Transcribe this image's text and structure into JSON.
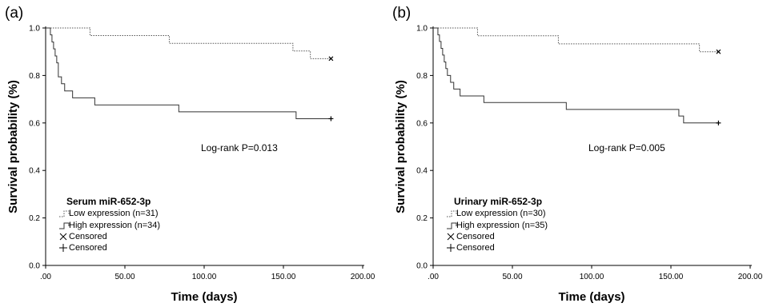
{
  "chart_data": [
    {
      "type": "line",
      "panel_label": "(a)",
      "xlabel": "Time (days)",
      "ylabel": "Survival probability (%)",
      "xlim": [
        0,
        200
      ],
      "ylim": [
        0,
        1.0
      ],
      "xticks": [
        ".00",
        "50.00",
        "100.00",
        "150.00",
        "200.00"
      ],
      "yticks": [
        "0.0",
        "0.2",
        "0.4",
        "0.6",
        "0.8",
        "1.0"
      ],
      "annotation": "Log-rank P=0.013",
      "legend": {
        "title": "Serum miR-652-3p",
        "position": "bottom-left",
        "entries": [
          "Low expression (n=31)",
          "High expression (n=34)",
          "Censored",
          "Censored"
        ]
      },
      "series": [
        {
          "name": "Low expression (n=31)",
          "style": "dotted",
          "steps": [
            [
              0,
              1.0
            ],
            [
              28,
              0.968
            ],
            [
              78,
              0.935
            ],
            [
              156,
              0.903
            ],
            [
              167,
              0.871
            ],
            [
              180,
              0.871
            ]
          ],
          "censor_x": 180,
          "censor_marker": "x"
        },
        {
          "name": "High expression (n=34)",
          "style": "solid",
          "steps": [
            [
              0,
              1.0
            ],
            [
              3,
              0.971
            ],
            [
              4,
              0.941
            ],
            [
              5,
              0.912
            ],
            [
              6,
              0.882
            ],
            [
              7,
              0.853
            ],
            [
              8,
              0.794
            ],
            [
              10,
              0.765
            ],
            [
              12,
              0.735
            ],
            [
              17,
              0.706
            ],
            [
              31,
              0.676
            ],
            [
              84,
              0.647
            ],
            [
              158,
              0.618
            ],
            [
              180,
              0.618
            ]
          ],
          "censor_x": 180,
          "censor_marker": "+"
        }
      ]
    },
    {
      "type": "line",
      "panel_label": "(b)",
      "xlabel": "Time (days)",
      "ylabel": "Survival probability (%)",
      "xlim": [
        0,
        200
      ],
      "ylim": [
        0,
        1.0
      ],
      "xticks": [
        ".00",
        "50.00",
        "100.00",
        "150.00",
        "200.00"
      ],
      "yticks": [
        "0.0",
        "0.2",
        "0.4",
        "0.6",
        "0.8",
        "1.0"
      ],
      "annotation": "Log-rank P=0.005",
      "legend": {
        "title": "Urinary miR-652-3p",
        "position": "bottom-left",
        "entries": [
          "Low expression (n=30)",
          "High expression (n=35)",
          "Censored",
          "Censored"
        ]
      },
      "series": [
        {
          "name": "Low expression (n=30)",
          "style": "dotted",
          "steps": [
            [
              0,
              1.0
            ],
            [
              28,
              0.967
            ],
            [
              79,
              0.933
            ],
            [
              168,
              0.9
            ],
            [
              180,
              0.9
            ]
          ],
          "censor_x": 180,
          "censor_marker": "x"
        },
        {
          "name": "High expression (n=35)",
          "style": "solid",
          "steps": [
            [
              0,
              1.0
            ],
            [
              3,
              0.971
            ],
            [
              4,
              0.943
            ],
            [
              5,
              0.914
            ],
            [
              6,
              0.886
            ],
            [
              7,
              0.857
            ],
            [
              8,
              0.829
            ],
            [
              9,
              0.8
            ],
            [
              11,
              0.771
            ],
            [
              13,
              0.743
            ],
            [
              17,
              0.714
            ],
            [
              32,
              0.686
            ],
            [
              84,
              0.657
            ],
            [
              155,
              0.629
            ],
            [
              158,
              0.6
            ],
            [
              180,
              0.6
            ]
          ],
          "censor_x": 180,
          "censor_marker": "+"
        }
      ]
    }
  ]
}
